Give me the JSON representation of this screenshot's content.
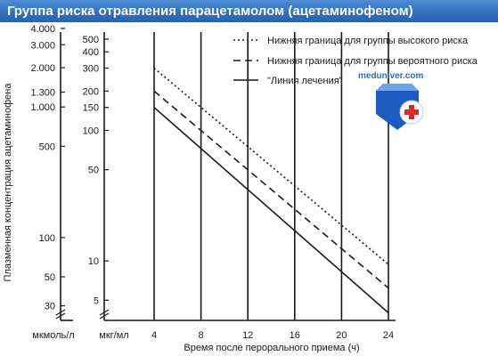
{
  "header": {
    "title": "Группа риска отравления парацетамолом (ацетаминофеном)"
  },
  "logo": {
    "text": "meduniver.com"
  },
  "colors": {
    "title_bar": "#2f6fbe",
    "lines": "#1a1a1a",
    "logo_shield": "#1d5bbf",
    "logo_cross": "#d92a2a"
  },
  "chart_data": {
    "type": "line",
    "xlabel": "Время после перорального приема (ч)",
    "ylabel": "Плазменная концентрация ацетаминофена",
    "x_ticks": [
      4,
      8,
      12,
      16,
      20,
      24
    ],
    "xlim": [
      4,
      24
    ],
    "y_scale": "log",
    "ylim_mcg_per_ml": [
      3.5,
      500
    ],
    "y_ticks_mcg_per_ml": [
      "500",
      "400",
      "300",
      "200",
      "150",
      "100",
      "50",
      "10",
      "5"
    ],
    "y_ticks_umol_per_l": [
      "4.000",
      "3.000",
      "2.000",
      "1.300",
      "1.000",
      "500",
      "100",
      "50",
      "30"
    ],
    "y_units": {
      "umol": "мкмоль/л",
      "mcg": "мкг/мл"
    },
    "grid": "vertical lines at x ticks",
    "legend_position": "top-right",
    "series": [
      {
        "name": "Нижняя граница для группы высокого риска",
        "style": "dotted",
        "x": [
          4,
          24
        ],
        "y": [
          300,
          9.4
        ]
      },
      {
        "name": "Нижняя граница для группы вероятного риска",
        "style": "dashed",
        "x": [
          4,
          24
        ],
        "y": [
          200,
          6.2
        ]
      },
      {
        "name": "\"Линия лечения\"",
        "style": "solid",
        "x": [
          4,
          24
        ],
        "y": [
          150,
          4.0
        ]
      }
    ]
  }
}
